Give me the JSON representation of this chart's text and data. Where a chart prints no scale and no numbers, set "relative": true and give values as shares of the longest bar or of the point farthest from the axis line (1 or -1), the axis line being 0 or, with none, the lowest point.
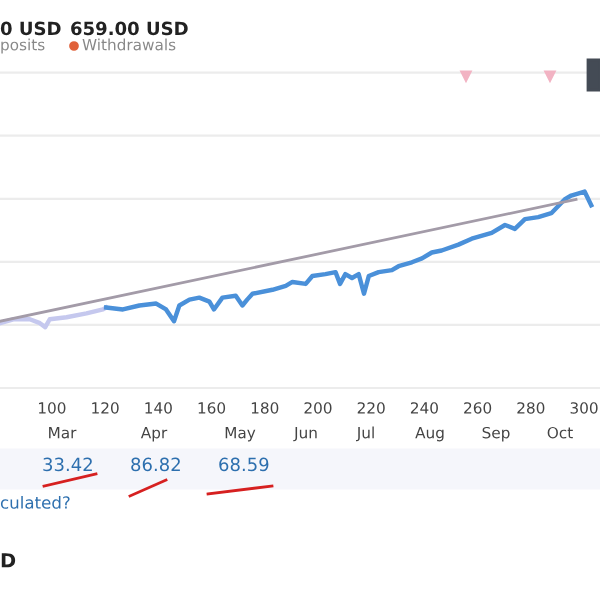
{
  "chart_data": {
    "type": "line",
    "relative": true,
    "xlim": [
      80.5,
      306
    ],
    "xticks": [
      100,
      120,
      140,
      160,
      180,
      200,
      220,
      240,
      260,
      280,
      300
    ],
    "grid": "y",
    "line_style": "solid",
    "marker": "none",
    "series": [
      {
        "color": "#c5c8ee",
        "x": [
          80.5,
          85.5,
          91.7,
          95.5,
          97.5,
          99.2,
          105.5,
          113,
          119.2,
          120.4
        ],
        "values": [
          0.33,
          0.35,
          0.35,
          0.33,
          0.31,
          0.35,
          0.36,
          0.38,
          0.4,
          0.41
        ]
      },
      {
        "color": "#4a90d9",
        "x": [
          120.4,
          126.7,
          132.9,
          139.2,
          142.9,
          145.9,
          147.9,
          151.7,
          155.4,
          159.2,
          160.9,
          164.1,
          169.1,
          171.6,
          173.4,
          175.4,
          182.9,
          187.9,
          190.4,
          195.4,
          197.9,
          202.8,
          206.6,
          208.3,
          210.3,
          212.8,
          215.3,
          217.3,
          219.1,
          222.8,
          227.8,
          230.3,
          235.3,
          239.1,
          242.8,
          246.5,
          252.8,
          257.8,
          265.3,
          270.3,
          274,
          277.8,
          282.8,
          287.7,
          292.7,
          295.2,
          300.2,
          302.7
        ],
        "values": [
          0.41,
          0.4,
          0.42,
          0.43,
          0.4,
          0.34,
          0.42,
          0.45,
          0.46,
          0.44,
          0.4,
          0.46,
          0.47,
          0.42,
          0.45,
          0.48,
          0.5,
          0.52,
          0.54,
          0.53,
          0.57,
          0.58,
          0.59,
          0.53,
          0.58,
          0.56,
          0.58,
          0.48,
          0.57,
          0.59,
          0.6,
          0.62,
          0.64,
          0.66,
          0.69,
          0.7,
          0.73,
          0.76,
          0.79,
          0.83,
          0.81,
          0.86,
          0.87,
          0.89,
          0.96,
          0.98,
          1.0,
          0.93
        ]
      },
      {
        "color": "#a39ba8",
        "x": [
          80.5,
          297
        ],
        "values": [
          0.34,
          0.96
        ]
      }
    ],
    "annotations": [
      "Mar",
      "Apr",
      "May",
      "Jun",
      "Jul",
      "Aug",
      "Sep",
      "Oct",
      "0 USD",
      "posits",
      "659.00 USD",
      "Withdrawals",
      "33.42",
      "86.82",
      "68.59",
      "culated?",
      "D"
    ]
  }
}
